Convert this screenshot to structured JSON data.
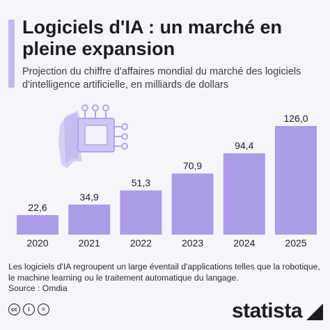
{
  "header": {
    "title": "Logiciels d'IA : un marché en pleine expansion",
    "subtitle": "Projection du chiffre d'affaires mondial du marché des logiciels d'intelligence artificielle, en milliards de dollars"
  },
  "chart_data": {
    "type": "bar",
    "categories": [
      "2020",
      "2021",
      "2022",
      "2023",
      "2024",
      "2025"
    ],
    "values": [
      22.6,
      34.9,
      51.3,
      70.9,
      94.4,
      126.0
    ],
    "value_labels": [
      "22,6",
      "34,9",
      "51,3",
      "70,9",
      "94,4",
      "126,0"
    ],
    "title": "",
    "xlabel": "",
    "ylabel": "",
    "ylim": [
      0,
      126.0
    ],
    "grid": false,
    "bar_color": "#ab9ce8",
    "label_color": "#1f1f1f"
  },
  "footnote": "Les logiciels d'IA regroupent un large éventail d'applications telles que la robotique, le machine learning ou le traitement automatique du langage.",
  "source": "Source : Omdia",
  "footer": {
    "brand": "statista",
    "icons": [
      "cc-icon",
      "by-icon",
      "nd-icon"
    ],
    "icon_labels": [
      "cc",
      "i",
      "="
    ]
  },
  "illustration": {
    "name": "ai-head-chip-icon",
    "color": "#c7bdf0"
  }
}
